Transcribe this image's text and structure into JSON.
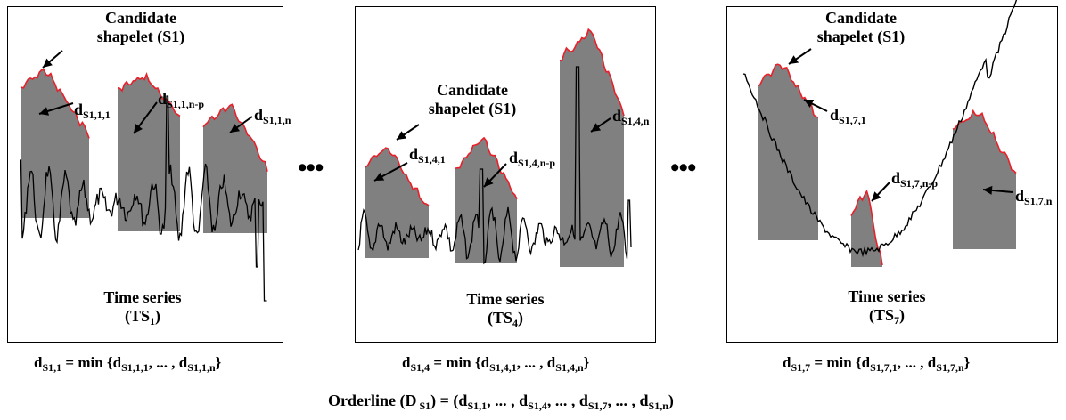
{
  "panels": [
    {
      "candidate_line1": "Candidate",
      "candidate_line2": "shapelet (S1)",
      "ts_line1": "Time series",
      "ts_line2_main": "(TS",
      "ts_line2_sub": "1",
      "ts_line2_end": ")",
      "dist_first": "S1,1,1",
      "dist_mid": "S1,1,n-p",
      "dist_last": "S1,1,n",
      "formula": {
        "lhs_sub": "S1,1",
        "eq": " = min {",
        "a_sub": "S1,1,1",
        "mid": ", ... , ",
        "b_sub": "S1,1,n",
        "end": "}"
      }
    },
    {
      "candidate_line1": "Candidate",
      "candidate_line2": "shapelet (S1)",
      "ts_line1": "Time series",
      "ts_line2_main": "(TS",
      "ts_line2_sub": "4",
      "ts_line2_end": ")",
      "dist_first": "S1,4,1",
      "dist_mid": "S1,4,n-p",
      "dist_last": "S1,4,n",
      "formula": {
        "lhs_sub": "S1,4",
        "eq": " =  min {",
        "a_sub": "S1,4,1",
        "mid": ", ... , ",
        "b_sub": "S1,4,n",
        "end": "}"
      }
    },
    {
      "candidate_line1": "Candidate",
      "candidate_line2": "shapelet (S1)",
      "ts_line1": "Time series",
      "ts_line2_main": "(TS",
      "ts_line2_sub": "7",
      "ts_line2_end": ")",
      "dist_first": "S1,7,1",
      "dist_mid": "S1,7,n-p",
      "dist_last": "S1,7,n",
      "formula": {
        "lhs_sub": "S1,7",
        "eq": " =  min {",
        "a_sub": "S1,7,1",
        "mid": ", ... , ",
        "b_sub": "S1,7,n",
        "end": "}"
      }
    }
  ],
  "d_letter": "d",
  "ellipsis": "•••",
  "orderline": {
    "prefix": "Orderline (D",
    "prefix_sub": " S1",
    "mid1": ") = (d",
    "s1": "S1,1",
    "sep": ", ... , d",
    "s2": "S1,4",
    "s3": "S1,7",
    "s4": "S1,n",
    "end": ")"
  },
  "colors": {
    "shapelet": "#e8202a",
    "fill": "#808080",
    "line": "#000000"
  }
}
